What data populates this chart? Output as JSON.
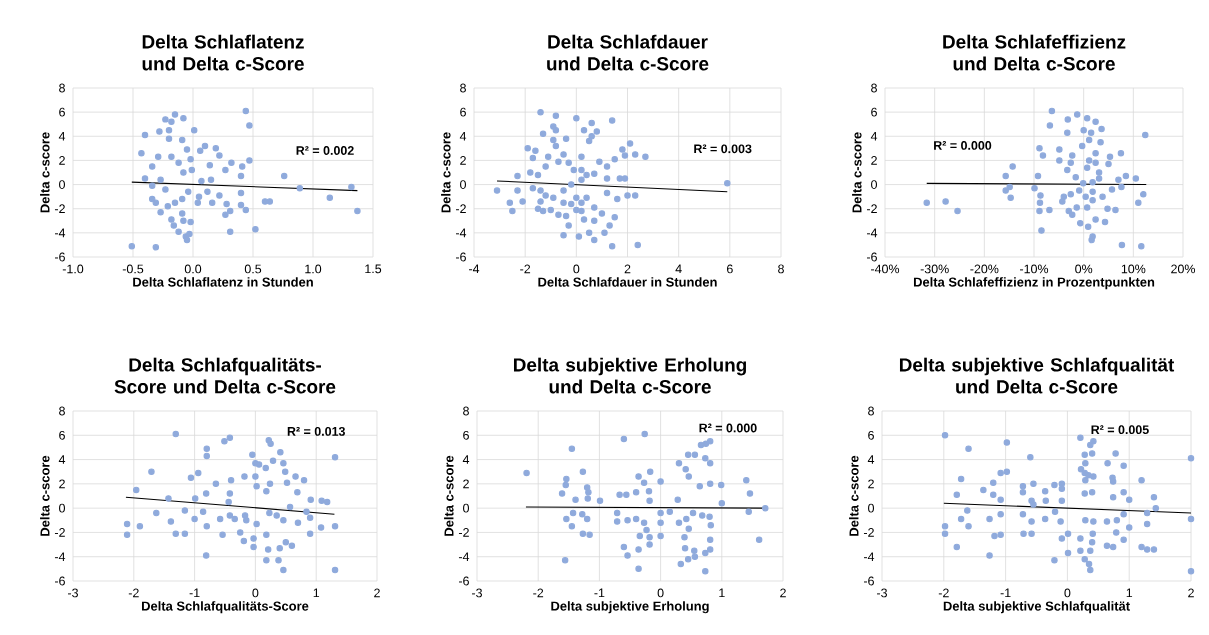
{
  "chart_data": [
    {
      "type": "scatter",
      "title": "Delta Schlaflatenz und Delta c-Score",
      "xlabel": "Delta Schlaflatenz in Stunden",
      "ylabel": "Delta c-score",
      "xlim": [
        -1,
        1.5
      ],
      "ylim": [
        -6,
        8
      ],
      "xticks": [
        {
          "value": -1,
          "label": "-1.0"
        },
        {
          "value": -0.5,
          "label": "-0.5"
        },
        {
          "value": 0,
          "label": "0.0"
        },
        {
          "value": 0.5,
          "label": "0.5"
        },
        {
          "value": 1,
          "label": "1.0"
        },
        {
          "value": 1.5,
          "label": "1.5"
        }
      ],
      "yticks": [
        -6,
        -4,
        -2,
        0,
        2,
        4,
        6,
        8
      ],
      "grid": true,
      "marker": "circle",
      "annotations": [
        "R² = 0.002"
      ],
      "series": [
        {
          "color": "#8faadc",
          "x": [
            0.44,
            0.47,
            -0.15,
            -0.23,
            -0.08,
            -0.18,
            0.01,
            -0.4,
            -0.28,
            -0.2,
            -0.2,
            -0.09,
            -0.43,
            -0.29,
            -0.05,
            0.1,
            0.19,
            0.22,
            0.06,
            0.32,
            0.47,
            0.41,
            0.14,
            -0.02,
            -0.34,
            -0.4,
            -0.27,
            -0.18,
            -0.12,
            -0.08,
            -0.01,
            0.07,
            0.15,
            0.27,
            0.4,
            0.76,
            0.89,
            1.32,
            1.14,
            1.37,
            0.64,
            0.6,
            0.4,
            0.4,
            0.44,
            0.31,
            0.31,
            0.52,
            0.27,
            0.16,
            0.28,
            0.22,
            0.12,
            0.05,
            -0.04,
            -0.09,
            -0.15,
            -0.23,
            -0.34,
            -0.34,
            -0.31,
            -0.27,
            -0.18,
            -0.16,
            -0.09,
            -0.08,
            -0.12,
            -0.06,
            -0.03,
            -0.02,
            -0.05,
            -0.51,
            -0.31,
            -0.21,
            0.04
          ],
          "values": [
            6.1,
            4.9,
            5.8,
            5.4,
            5.5,
            5.2,
            4.5,
            4.1,
            4.4,
            4.5,
            3.8,
            3.7,
            2.6,
            2.3,
            2.9,
            3.2,
            3.0,
            2.4,
            2.8,
            1.8,
            2.0,
            1.5,
            1.6,
            2.1,
            1.5,
            0.5,
            0.4,
            2.3,
            1.8,
            1.0,
            1.2,
            0.3,
            0.4,
            1.2,
            0.7,
            0.7,
            -0.3,
            -0.2,
            -1.1,
            -2.2,
            -1.4,
            -1.4,
            -0.7,
            -1.7,
            -2.1,
            -2.2,
            -3.9,
            -3.7,
            -2.5,
            -1.5,
            -1.6,
            -0.9,
            -0.6,
            -1.0,
            -0.6,
            -1.2,
            -1.5,
            -0.4,
            -0.1,
            -1.2,
            -1.5,
            -2.3,
            -2.9,
            -3.4,
            -2.4,
            -3.0,
            -3.9,
            -4.3,
            -4.1,
            -3.1,
            -4.6,
            -5.1,
            -5.2,
            -1.8,
            -1.5
          ]
        },
        {
          "type": "line",
          "color": "#000000",
          "marker": "none",
          "x": [
            -0.51,
            1.37
          ],
          "values": [
            0.2,
            -0.5
          ]
        }
      ]
    },
    {
      "type": "scatter",
      "title": "Delta Schlafdauer und Delta c-Score",
      "xlabel": "Delta Schlafdauer in Stunden",
      "ylabel": "Delta c-score",
      "xlim": [
        -4,
        8
      ],
      "ylim": [
        -6,
        8
      ],
      "xticks": [
        -4,
        -2,
        0,
        2,
        4,
        6,
        8
      ],
      "yticks": [
        -6,
        -4,
        -2,
        0,
        2,
        4,
        6,
        8
      ],
      "grid": true,
      "marker": "circle",
      "annotations": [
        "R² = 0.003"
      ],
      "series": [
        {
          "color": "#8faadc",
          "x": [
            -1.4,
            -0.8,
            0.0,
            0.6,
            1.4,
            -0.9,
            -0.8,
            0.3,
            -1.3,
            0.8,
            0.6,
            0.5,
            -0.4,
            -0.9,
            -0.8,
            -1.9,
            -1.6,
            -1.7,
            -1.1,
            -0.5,
            0.2,
            0.9,
            1.2,
            1.8,
            2.1,
            2.3,
            2.7,
            1.9,
            1.5,
            -0.7,
            -0.3,
            -0.1,
            0.2,
            -1.2,
            -1.8,
            -1.5,
            -2.3,
            -3.1,
            -2.3,
            -2.6,
            -2.5,
            -2.1,
            -1.5,
            -1.3,
            -1.0,
            -0.7,
            -0.4,
            -0.3,
            -0.5,
            0.1,
            0.5,
            0.7,
            1.1,
            1.3,
            1.4,
            2.4,
            1.5,
            1.0,
            0.7,
            0.3,
            0.2,
            0.2,
            0.7,
            1.2,
            1.6,
            2.0,
            2.3,
            1.7,
            1.9,
            1.2,
            0.7,
            0.4,
            0.2,
            -0.2,
            -0.5,
            -0.9,
            -1.2,
            -1.4,
            -1.7,
            -1.4,
            -0.5,
            0.0,
            0.4,
            5.9,
            -0.2,
            0.0
          ],
          "values": [
            6.0,
            5.7,
            5.5,
            5.1,
            5.3,
            4.8,
            4.5,
            4.5,
            4.2,
            4.4,
            4.0,
            3.6,
            3.8,
            3.7,
            3.2,
            3.0,
            2.8,
            2.2,
            2.3,
            2.5,
            2.3,
            1.9,
            1.5,
            2.9,
            3.4,
            2.5,
            2.3,
            2.4,
            2.1,
            1.9,
            1.8,
            1.2,
            1.2,
            1.5,
            1.0,
            0.8,
            0.7,
            -0.5,
            -0.5,
            -1.5,
            -2.2,
            -1.4,
            -2.0,
            -2.2,
            -2.1,
            -2.5,
            -2.6,
            -3.4,
            -4.2,
            -4.3,
            -4.0,
            -4.6,
            -4.0,
            -3.4,
            -5.1,
            -5.0,
            -2.7,
            -2.4,
            -3.0,
            -2.9,
            -2.2,
            -1.5,
            -1.9,
            -0.7,
            -1.2,
            -0.9,
            -0.9,
            0.5,
            0.5,
            0.5,
            0.9,
            0.8,
            0.4,
            0.0,
            -0.5,
            -1.1,
            -0.9,
            -0.5,
            -0.3,
            -1.4,
            -1.5,
            -1.1,
            -1.1,
            0.1,
            -1.6,
            -2.1
          ]
        },
        {
          "type": "line",
          "color": "#000000",
          "marker": "none",
          "x": [
            -3.1,
            5.9
          ],
          "values": [
            0.3,
            -0.6
          ]
        }
      ]
    },
    {
      "type": "scatter",
      "title": "Delta Schlafeffizienz und Delta c-Score",
      "xlabel": "Delta Schlafeffizienz in Prozentpunkten",
      "ylabel": "Delta c-score",
      "xlim": [
        -40,
        20
      ],
      "ylim": [
        -6,
        8
      ],
      "xticks": [
        {
          "value": -40,
          "label": "-40%"
        },
        {
          "value": -30,
          "label": "-30%"
        },
        {
          "value": -20,
          "label": "-20%"
        },
        {
          "value": -10,
          "label": "-10%"
        },
        {
          "value": 0,
          "label": "0%"
        },
        {
          "value": 10,
          "label": "10%"
        },
        {
          "value": 20,
          "label": "20%"
        }
      ],
      "yticks": [
        -6,
        -4,
        -2,
        0,
        2,
        4,
        6,
        8
      ],
      "grid": true,
      "marker": "circle",
      "annotations": [
        "R² = 0.000"
      ],
      "series": [
        {
          "color": "#8faadc",
          "x": [
            -6.4,
            -1.3,
            0.7,
            2.4,
            -3.2,
            -6.8,
            0,
            1.5,
            3.6,
            -3.3,
            12.4,
            1.1,
            3.4,
            -0.3,
            -8.9,
            -4.9,
            -8.2,
            -2.3,
            2.4,
            7.5,
            5.3,
            -4.9,
            -2.6,
            1.1,
            -3.3,
            5,
            -14.3,
            -15.7,
            -9.2,
            -1.6,
            3.1,
            7,
            8.5,
            10.5,
            -15.7,
            -14.9,
            -9.9,
            -14.7,
            -8.7,
            -8.8,
            -31.6,
            -27.8,
            -25.4,
            -8.9,
            -6.9,
            -8.5,
            -3,
            -2.3,
            -0.7,
            -1.4,
            0.9,
            1.8,
            1.6,
            4.3,
            2.4,
            4.8,
            6.4,
            7.7,
            11.6,
            11,
            12,
            7.6,
            5.7,
            3.8,
            1.8,
            0.4,
            -0.9,
            -2.6,
            -4,
            -4.3,
            1.8,
            0.7,
            3.1,
            1.8,
            -0.1,
            0.7,
            2.4
          ],
          "values": [
            6.1,
            5.8,
            5.5,
            5.2,
            5.4,
            4.9,
            4.5,
            4.3,
            4.6,
            4.3,
            4.1,
            3.7,
            3.5,
            3.2,
            3.0,
            2.9,
            2.4,
            2.4,
            2.6,
            2.6,
            2.3,
            2.0,
            1.8,
            2.0,
            1.2,
            1.7,
            1.5,
            0.7,
            0.7,
            0.6,
            1.0,
            0.4,
            0.7,
            0.5,
            -0.5,
            -0.2,
            -0.3,
            -1.1,
            -0.9,
            -1.5,
            -1.5,
            -1.4,
            -2.2,
            -2.2,
            -2.1,
            -3.8,
            -2.2,
            -2.5,
            -3.2,
            -1.9,
            -3.5,
            -4.3,
            -4.6,
            -3.1,
            -2.9,
            -2.0,
            -2.1,
            -5.0,
            -5.1,
            -1.5,
            -0.8,
            -0.2,
            -0.4,
            -1.0,
            -0.6,
            -1.0,
            -0.5,
            -0.8,
            -1.0,
            -1.4,
            -1.3,
            -1.9,
            0.5,
            0.2,
            0.1,
            1.4,
            1.8
          ]
        },
        {
          "type": "line",
          "color": "#000000",
          "marker": "none",
          "x": [
            -31.6,
            12.6
          ],
          "values": [
            0.1,
            0.0
          ]
        }
      ]
    },
    {
      "type": "scatter",
      "title": "Delta Schlafqualitäts-Score und Delta c-Score",
      "xlabel": "Delta Schlafqualitäts-Score",
      "ylabel": "Delta c-score",
      "xlim": [
        -3,
        2
      ],
      "ylim": [
        -6,
        8
      ],
      "xticks": [
        -3,
        -2,
        -1,
        0,
        1,
        2
      ],
      "yticks": [
        -6,
        -4,
        -2,
        0,
        2,
        4,
        6,
        8
      ],
      "grid": true,
      "marker": "circle",
      "annotations": [
        "R² = 0.013"
      ],
      "series": [
        {
          "color": "#8faadc",
          "x": [
            -1.31,
            -0.42,
            -0.51,
            0.22,
            0.25,
            -0.8,
            -0.8,
            -0.05,
            0.41,
            0,
            0.06,
            0.17,
            0.29,
            0.46,
            1.31,
            -1.71,
            -0.94,
            -1.06,
            -0.4,
            -0.18,
            0,
            0.49,
            0.66,
            0.8,
            -0.65,
            0.24,
            0.52,
            -1.96,
            -1.43,
            -0.81,
            -0.42,
            0.02,
            0.18,
            0.69,
            0.91,
            1.09,
            1.18,
            -0.99,
            -0.44,
            -2.11,
            -2.11,
            -1.9,
            -1.63,
            -1.39,
            -1.31,
            -1.16,
            -1.16,
            -1.0,
            -0.86,
            -0.8,
            -0.54,
            -0.81,
            -0.25,
            -0.19,
            -0.03,
            -0.03,
            0.02,
            0.18,
            0.38,
            0.46,
            1.31,
            0.4,
            0.5,
            0.6,
            0.21,
            0.18,
            0.7,
            0.9,
            0.9,
            1.08,
            1.31,
            0.46,
            0.35,
            0.23,
            -0.34,
            -0.17,
            -0.15,
            -0.42,
            -0.58,
            0.57,
            0.84
          ],
          "values": [
            6.1,
            5.8,
            5.5,
            5.6,
            5.3,
            4.9,
            4.3,
            4.4,
            4.6,
            3.7,
            3.6,
            3.3,
            3.9,
            3.7,
            4.2,
            3.0,
            2.9,
            2.5,
            2.3,
            2.6,
            2.6,
            3.0,
            2.6,
            2.3,
            2.0,
            2.0,
            2.1,
            1.5,
            0.8,
            1.2,
            1.2,
            1.8,
            1.4,
            1.3,
            0.7,
            0.6,
            0.5,
            0.8,
            0.5,
            -1.3,
            -2.2,
            -1.5,
            -0.4,
            -1.1,
            -2.1,
            -2.1,
            -0.2,
            -0.9,
            -0.3,
            -1.5,
            -2.2,
            -3.9,
            -2.0,
            -2.7,
            -3.2,
            -2.5,
            -1.3,
            -4.3,
            -4.3,
            -5.1,
            -5.1,
            -3.3,
            -2.8,
            -3.1,
            -3.4,
            -2.2,
            -1.2,
            -2.1,
            -0.8,
            -1.6,
            -1.5,
            -1.0,
            -0.6,
            -0.4,
            -0.9,
            -0.6,
            -1.0,
            -0.6,
            -0.9,
            0.1,
            -0.3
          ]
        },
        {
          "type": "line",
          "color": "#000000",
          "marker": "none",
          "x": [
            -2.13,
            1.3
          ],
          "values": [
            0.9,
            -0.5
          ]
        }
      ]
    },
    {
      "type": "scatter",
      "title": "Delta subjektive Erholung und Delta c-Score",
      "xlabel": "Delta subjektive Erholung",
      "ylabel": "Delta c-score",
      "xlim": [
        -3,
        2
      ],
      "ylim": [
        -6,
        8
      ],
      "xticks": [
        -3,
        -2,
        -1,
        0,
        1,
        2
      ],
      "yticks": [
        -6,
        -4,
        -2,
        0,
        2,
        4,
        6,
        8
      ],
      "grid": true,
      "marker": "circle",
      "annotations": [
        "R² = 0.000"
      ],
      "series": [
        {
          "color": "#8faadc",
          "x": [
            -0.26,
            -0.6,
            0.81,
            0.74,
            0.66,
            -1.45,
            0.45,
            0.56,
            0.73,
            0.81,
            0.3,
            0.41,
            -2.19,
            -1.27,
            -0.36,
            -0.17,
            -1.54,
            -1.55,
            -0.27,
            0,
            0.46,
            0.64,
            0.99,
            1.4,
            0.81,
            -1.2,
            -1.18,
            -1.61,
            -0.19,
            -0.67,
            -0.56,
            1.46,
            -1.39,
            -1.19,
            -0.99,
            -0.4,
            -0.18,
            0.28,
            1.0,
            1.71,
            -1.54,
            -1.45,
            -1.43,
            -1.28,
            -1.2,
            -1.27,
            -1.16,
            -1.56,
            -0.71,
            -0.71,
            -0.54,
            -0.4,
            -0.27,
            -0.23,
            -0.34,
            -0.18,
            -0.18,
            -0.6,
            -0.54,
            -0.36,
            -0.36,
            0,
            0,
            0,
            0.3,
            0.42,
            0.46,
            0.39,
            0.4,
            0.55,
            0.56,
            0.33,
            0.45,
            0.73,
            0.73,
            0.81,
            0.81,
            0.82,
            0.8,
            0.53,
            0.68,
            1.61,
            1.44,
            0.15
          ],
          "values": [
            6.1,
            5.7,
            5.5,
            5.3,
            5.2,
            4.9,
            4.4,
            4.4,
            4.1,
            3.7,
            3.7,
            3.2,
            2.9,
            3.0,
            2.6,
            3.0,
            2.4,
            1.9,
            2.1,
            2.2,
            2.6,
            1.8,
            1.9,
            2.3,
            2.0,
            1.7,
            1.3,
            1.2,
            1.4,
            1.1,
            1.1,
            1.2,
            0.7,
            0.8,
            0.6,
            1.3,
            0.6,
            0.7,
            0.4,
            0.0,
            -0.9,
            -1.5,
            -0.4,
            -0.5,
            -0.9,
            -2.1,
            -2.2,
            -4.3,
            -0.4,
            -1.1,
            -1.0,
            -0.9,
            -1.2,
            -1.8,
            -2.3,
            -2.4,
            -3.0,
            -3.2,
            -3.9,
            -3.4,
            -5.0,
            -2.3,
            -1.2,
            -0.4,
            -1.2,
            -0.9,
            -1.7,
            -2.4,
            -3.3,
            -3.5,
            -4.0,
            -4.6,
            -4.2,
            -3.7,
            -5.2,
            -2.6,
            -3.4,
            -1.4,
            -0.7,
            -0.4,
            -0.6,
            -2.6,
            -0.3,
            -0.3
          ]
        },
        {
          "type": "line",
          "color": "#000000",
          "marker": "none",
          "x": [
            -2.2,
            1.7
          ],
          "values": [
            0.1,
            0.0
          ]
        }
      ]
    },
    {
      "type": "scatter",
      "title": "Delta subjektive Schlafqualität und Delta c-Score",
      "xlabel": "Delta subjektive Schlafqualität",
      "ylabel": "Delta c-score",
      "xlim": [
        -3,
        2
      ],
      "ylim": [
        -6,
        8
      ],
      "xticks": [
        -3,
        -2,
        -1,
        0,
        1,
        2
      ],
      "yticks": [
        -6,
        -4,
        -2,
        0,
        2,
        4,
        6,
        8
      ],
      "grid": true,
      "marker": "circle",
      "annotations": [
        "R² = 0.005"
      ],
      "series": [
        {
          "color": "#8faadc",
          "x": [
            -1.98,
            -1.6,
            -0.98,
            -0.6,
            0.21,
            0.42,
            0.37,
            0.4,
            0.28,
            0.78,
            2.0,
            0.29,
            0.65,
            0.91,
            0.22,
            0.28,
            0.34,
            0.42,
            0.73,
            0.29,
            -1.72,
            -1.08,
            -0.98,
            -1.2,
            -0.55,
            -0.21,
            -0.09,
            0.74,
            1.2,
            -1.79,
            -1.36,
            -1.2,
            -1.08,
            -0.72,
            -0.72,
            -0.36,
            -0.35,
            -0.09,
            0.28,
            0.4,
            0.91,
            0.74,
            1.0,
            1.4,
            1.43,
            -0.09,
            -0.58,
            -0.55,
            -1.62,
            -1.72,
            -1.6,
            -1.98,
            -1.98,
            -1.79,
            -1.08,
            -1.26,
            -1.18,
            -1.08,
            -1.26,
            -0.72,
            -0.71,
            -0.58,
            -0.58,
            -0.36,
            -0.2,
            -0.11,
            -0.09,
            -0.21,
            0.01,
            0.01,
            0.21,
            0.21,
            0.28,
            0.35,
            0.37,
            0.37,
            0.4,
            0.41,
            0.29,
            0.42,
            0.64,
            0.64,
            0.74,
            0.79,
            0.8,
            0.91,
            0.91,
            1.0,
            1.2,
            1.29,
            1.4,
            1.29,
            1.29,
            2.0,
            2.0
          ],
          "values": [
            6.0,
            4.9,
            5.4,
            4.2,
            5.8,
            5.5,
            5.2,
            4.5,
            4.4,
            4.5,
            4.1,
            3.7,
            3.7,
            3.5,
            3.2,
            2.9,
            2.7,
            2.6,
            2.5,
            2.3,
            2.4,
            2.9,
            3.0,
            2.1,
            2.0,
            1.9,
            2.0,
            2.2,
            2.3,
            1.1,
            1.5,
            1.1,
            0.7,
            1.8,
            1.3,
            1.4,
            0.6,
            1.6,
            1.2,
            1.3,
            1.3,
            0.9,
            0.7,
            0.9,
            0.0,
            0.6,
            0.6,
            0.3,
            -0.2,
            -0.9,
            -1.5,
            -1.5,
            -2.1,
            -3.2,
            -0.5,
            -0.9,
            -2.3,
            -2.2,
            -3.9,
            -0.5,
            -2.1,
            -1.1,
            -2.1,
            -0.9,
            -0.3,
            -1.1,
            -2.5,
            -4.3,
            -2.1,
            -3.7,
            -2.5,
            -3.5,
            -4.2,
            -4.6,
            -5.1,
            -3.5,
            -2.8,
            -2.1,
            -1.0,
            -1.1,
            -1.1,
            -3.1,
            -3.2,
            -2.0,
            -1.0,
            -0.5,
            -2.6,
            -1.6,
            -3.2,
            -3.4,
            -3.4,
            -1.3,
            -0.4,
            -0.9,
            -5.2
          ]
        },
        {
          "type": "line",
          "color": "#000000",
          "marker": "none",
          "x": [
            -2.0,
            2.0
          ],
          "values": [
            0.4,
            -0.4
          ]
        }
      ]
    }
  ]
}
